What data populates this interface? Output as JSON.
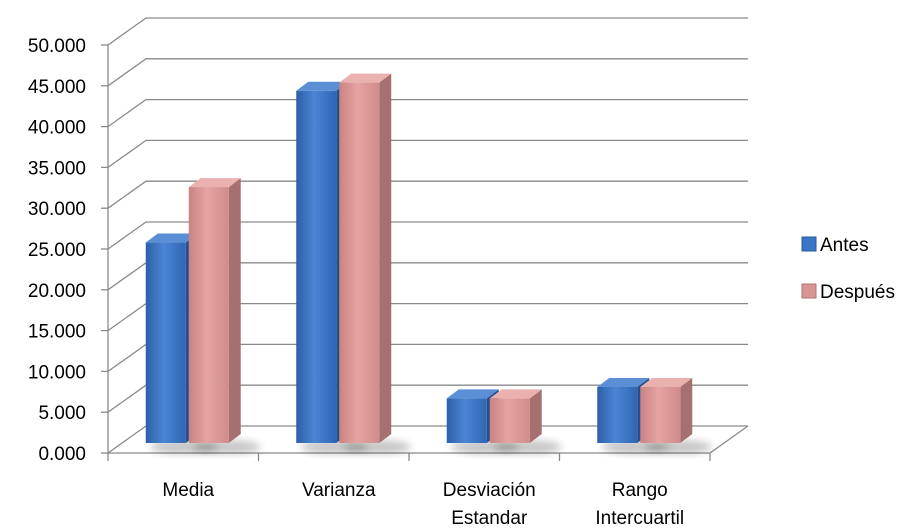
{
  "chart_data": {
    "type": "bar",
    "style": "3d-clustered-column",
    "categories": [
      [
        "Media"
      ],
      [
        "Varianza"
      ],
      [
        "Desviación",
        "Estandar"
      ],
      [
        "Rango",
        "Intercuartil"
      ]
    ],
    "series": [
      {
        "name": "Antes",
        "color": "#3A74C4",
        "values": [
          25.3,
          43.9,
          6.2,
          7.6
        ]
      },
      {
        "name": "Después",
        "color": "#D99593",
        "values": [
          32.1,
          44.9,
          6.2,
          7.6
        ]
      }
    ],
    "ylim": [
      0,
      50
    ],
    "yticks": [
      0,
      5,
      10,
      15,
      20,
      25,
      30,
      35,
      40,
      45,
      50
    ],
    "ytick_labels": [
      "0.000",
      "5.000",
      "10.000",
      "15.000",
      "20.000",
      "25.000",
      "30.000",
      "35.000",
      "40.000",
      "45.000",
      "50.000"
    ],
    "grid": true,
    "legend_position": "right",
    "title": "",
    "xlabel": "",
    "ylabel": ""
  }
}
